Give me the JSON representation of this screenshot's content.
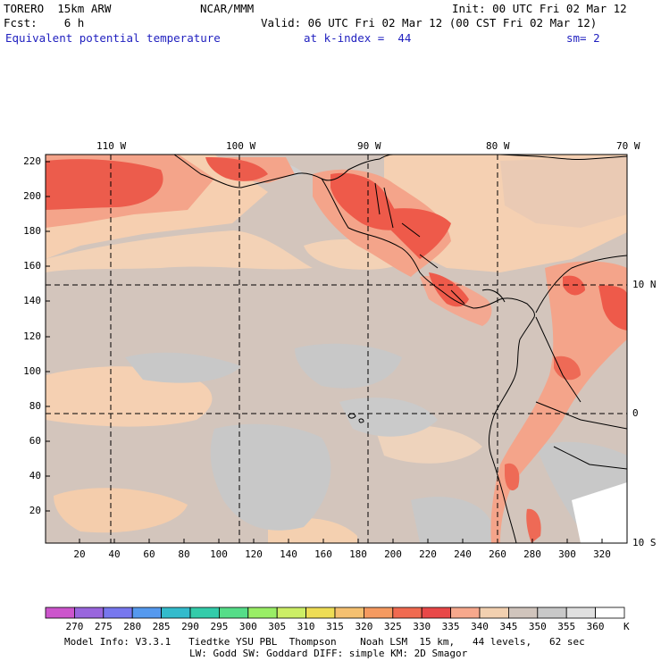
{
  "header": {
    "model": "TORERO  15km ARW",
    "org": "NCAR/MMM",
    "init": "Init: 00 UTC Fri 02 Mar 12",
    "fcst": "Fcst:    6 h",
    "valid": "Valid: 06 UTC Fri 02 Mar 12 (00 CST Fri 02 Mar 12)",
    "field": "Equivalent potential temperature",
    "level": "at k-index =  44",
    "smooth": "sm= 2"
  },
  "map": {
    "lon_labels": [
      "110 W",
      "100 W",
      "90 W",
      "80 W",
      "70 W"
    ],
    "lat_labels": [
      "10 N",
      "0",
      "10 S"
    ],
    "x_ticks": [
      "20",
      "40",
      "60",
      "80",
      "100",
      "120",
      "140",
      "160",
      "180",
      "200",
      "220",
      "240",
      "260",
      "280",
      "300",
      "320"
    ],
    "y_ticks": [
      "220",
      "200",
      "180",
      "160",
      "140",
      "120",
      "100",
      "80",
      "60",
      "40",
      "20"
    ]
  },
  "colorbar": {
    "labels": [
      "270",
      "275",
      "280",
      "285",
      "290",
      "295",
      "300",
      "305",
      "310",
      "315",
      "320",
      "325",
      "330",
      "335",
      "340",
      "345",
      "350",
      "355",
      "360"
    ],
    "unit": "K",
    "colors": [
      "#cc55cc",
      "#9966dd",
      "#7777ee",
      "#5599ee",
      "#33bbcc",
      "#33ccaa",
      "#55dd88",
      "#99ee66",
      "#ccee66",
      "#eedd55",
      "#f5c070",
      "#f59a60",
      "#f06a50",
      "#e84848",
      "#f6a88c",
      "#f2d0b0",
      "#d0c4bc",
      "#c8c8c8",
      "#e0e0e0",
      "#ffffff"
    ]
  },
  "footer": {
    "line1": "Model Info: V3.3.1   Tiedtke YSU PBL  Thompson    Noah LSM  15 km,   44 levels,   62 sec",
    "line2": "LW: Godd SW: Goddard DIFF: simple KM: 2D Smagor"
  }
}
